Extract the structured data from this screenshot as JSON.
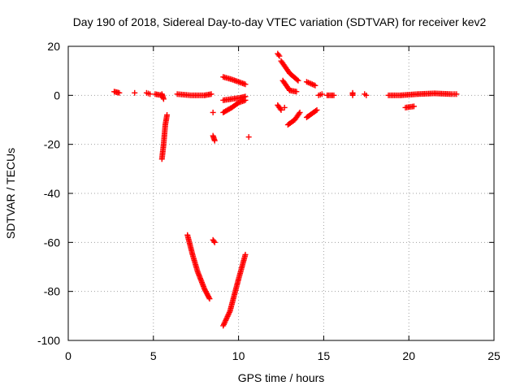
{
  "chart_data": {
    "type": "scatter",
    "title": "Day 190 of 2018, Sidereal Day-to-day VTEC variation (SDTVAR) for receiver kev2",
    "xlabel": "GPS time / hours",
    "ylabel": "SDTVAR / TECUs",
    "xlim": [
      0,
      25
    ],
    "ylim": [
      -100,
      20
    ],
    "xticks": [
      0,
      5,
      10,
      15,
      20,
      25
    ],
    "yticks": [
      -100,
      -80,
      -60,
      -40,
      -20,
      0,
      20
    ],
    "grid": true,
    "marker": "+",
    "marker_color": "#ff0000",
    "series": [
      {
        "name": "SDTVAR",
        "segments": [
          {
            "x": [
              2.7,
              3.0
            ],
            "y": [
              1.5,
              1.0
            ]
          },
          {
            "x": [
              3.9,
              3.9
            ],
            "y": [
              1.0,
              1.0
            ]
          },
          {
            "x": [
              4.6,
              4.8
            ],
            "y": [
              1.0,
              0.5
            ]
          },
          {
            "x": [
              5.1,
              5.5
            ],
            "y": [
              0.5,
              0.0
            ]
          },
          {
            "x": [
              5.5,
              5.6
            ],
            "y": [
              0.5,
              -1.5
            ]
          },
          {
            "x": [
              5.5,
              5.6,
              5.7,
              5.8
            ],
            "y": [
              -26,
              -20,
              -12,
              -8
            ]
          },
          {
            "x": [
              6.4,
              7.2,
              8.0,
              8.4
            ],
            "y": [
              0.5,
              0.0,
              0.0,
              0.5
            ]
          },
          {
            "x": [
              7.0,
              7.3,
              7.6,
              8.0,
              8.3
            ],
            "y": [
              -57,
              -65,
              -72,
              -79,
              -83
            ]
          },
          {
            "x": [
              8.5,
              8.6
            ],
            "y": [
              -59,
              -60
            ]
          },
          {
            "x": [
              8.5,
              8.6
            ],
            "y": [
              -16.5,
              -18.5
            ]
          },
          {
            "x": [
              8.5,
              8.5
            ],
            "y": [
              -7,
              -7
            ]
          },
          {
            "x": [
              9.1,
              9.5,
              10.0,
              10.4
            ],
            "y": [
              -94,
              -88,
              -75,
              -65
            ]
          },
          {
            "x": [
              9.1,
              9.6,
              10.0,
              10.4
            ],
            "y": [
              7.5,
              6.5,
              5.5,
              4.5
            ]
          },
          {
            "x": [
              9.1,
              9.6,
              10.1,
              10.4
            ],
            "y": [
              -2,
              -1.5,
              -1.0,
              -0.5
            ]
          },
          {
            "x": [
              9.1,
              9.6,
              10.0,
              10.4
            ],
            "y": [
              -7,
              -5,
              -3,
              -2
            ]
          },
          {
            "x": [
              10.6,
              10.6
            ],
            "y": [
              -17,
              -17
            ]
          },
          {
            "x": [
              12.3,
              12.4
            ],
            "y": [
              17,
              16
            ]
          },
          {
            "x": [
              12.5,
              13.0,
              13.5
            ],
            "y": [
              14,
              9,
              6
            ]
          },
          {
            "x": [
              12.6,
              13.0,
              13.4
            ],
            "y": [
              6,
              2,
              1.5
            ]
          },
          {
            "x": [
              12.3,
              12.5
            ],
            "y": [
              -4,
              -6
            ]
          },
          {
            "x": [
              12.7,
              12.7
            ],
            "y": [
              -5,
              -5
            ]
          },
          {
            "x": [
              12.9,
              13.3,
              13.6
            ],
            "y": [
              -12,
              -10,
              -7
            ]
          },
          {
            "x": [
              14.0,
              14.5
            ],
            "y": [
              5.5,
              4
            ]
          },
          {
            "x": [
              14.0,
              14.4,
              14.6
            ],
            "y": [
              -9,
              -7,
              -6
            ]
          },
          {
            "x": [
              14.7,
              14.9
            ],
            "y": [
              0.0,
              0.5
            ]
          },
          {
            "x": [
              15.2,
              15.6
            ],
            "y": [
              0.0,
              0.0
            ]
          },
          {
            "x": [
              16.7,
              16.7
            ],
            "y": [
              1.0,
              0.0
            ]
          },
          {
            "x": [
              17.4,
              17.5
            ],
            "y": [
              0.5,
              0.0
            ]
          },
          {
            "x": [
              18.8,
              19.5,
              20.5,
              21.5,
              22.5,
              22.8
            ],
            "y": [
              0.0,
              0.0,
              0.5,
              0.8,
              0.5,
              0.5
            ]
          },
          {
            "x": [
              19.8,
              20.3
            ],
            "y": [
              -5,
              -4.5
            ]
          }
        ]
      }
    ]
  }
}
